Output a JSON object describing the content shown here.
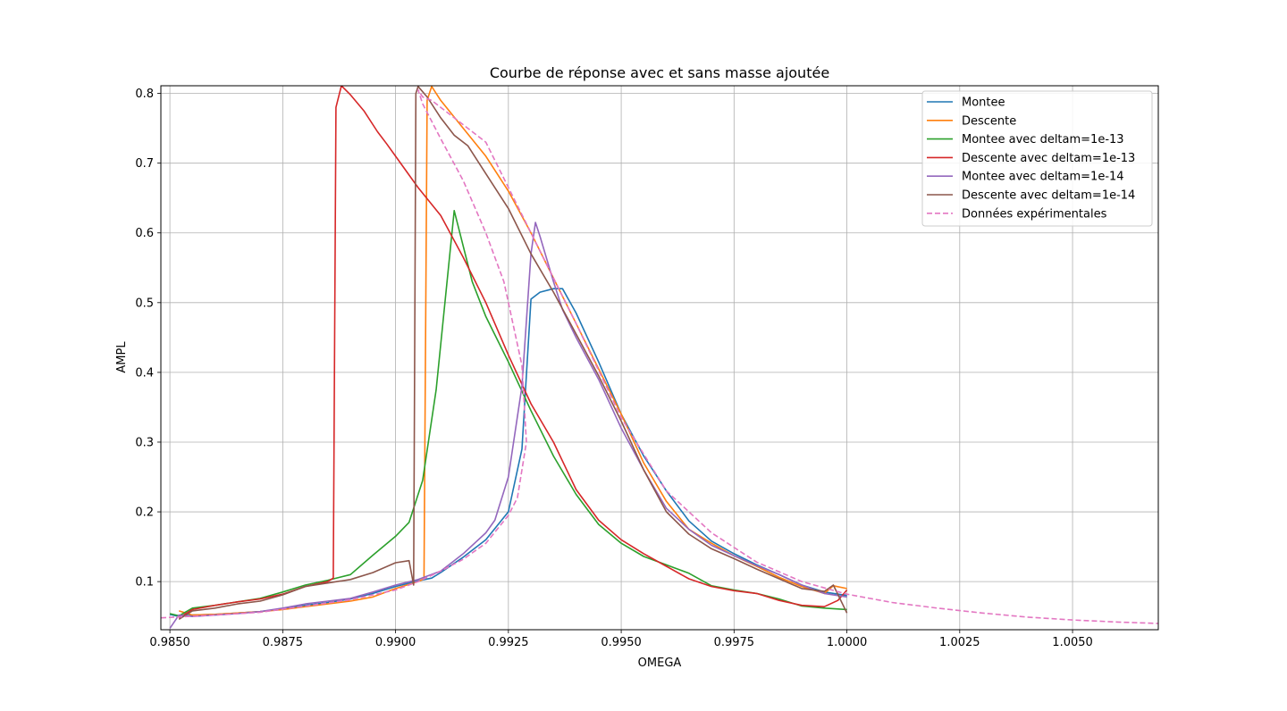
{
  "chart_data": {
    "type": "line",
    "title": "Courbe de réponse avec et sans masse ajoutée",
    "xlabel": "OMEGA",
    "ylabel": "AMPL",
    "xlim": [
      0.9848,
      1.0069
    ],
    "ylim": [
      0.031,
      0.811
    ],
    "grid": true,
    "legend_position": "top-right",
    "xticks": [
      {
        "value": 0.985,
        "label": "0.9850"
      },
      {
        "value": 0.9875,
        "label": "0.9875"
      },
      {
        "value": 0.99,
        "label": "0.9900"
      },
      {
        "value": 0.9925,
        "label": "0.9925"
      },
      {
        "value": 0.995,
        "label": "0.9950"
      },
      {
        "value": 0.9975,
        "label": "0.9975"
      },
      {
        "value": 1.0,
        "label": "1.0000"
      },
      {
        "value": 1.0025,
        "label": "1.0025"
      },
      {
        "value": 1.005,
        "label": "1.0050"
      }
    ],
    "yticks": [
      {
        "value": 0.1,
        "label": "0.1"
      },
      {
        "value": 0.2,
        "label": "0.2"
      },
      {
        "value": 0.3,
        "label": "0.3"
      },
      {
        "value": 0.4,
        "label": "0.4"
      },
      {
        "value": 0.5,
        "label": "0.5"
      },
      {
        "value": 0.6,
        "label": "0.6"
      },
      {
        "value": 0.7,
        "label": "0.7"
      },
      {
        "value": 0.8,
        "label": "0.8"
      }
    ],
    "series": [
      {
        "name": "Montee",
        "color": "#1f77b4",
        "dashed": false,
        "points": [
          [
            0.985,
            0.053
          ],
          [
            0.9852,
            0.05
          ],
          [
            0.9855,
            0.052
          ],
          [
            0.986,
            0.053
          ],
          [
            0.9865,
            0.055
          ],
          [
            0.987,
            0.057
          ],
          [
            0.9875,
            0.061
          ],
          [
            0.988,
            0.066
          ],
          [
            0.9885,
            0.07
          ],
          [
            0.989,
            0.075
          ],
          [
            0.9895,
            0.083
          ],
          [
            0.99,
            0.093
          ],
          [
            0.9905,
            0.101
          ],
          [
            0.9908,
            0.105
          ],
          [
            0.991,
            0.113
          ],
          [
            0.9915,
            0.135
          ],
          [
            0.992,
            0.16
          ],
          [
            0.9925,
            0.2
          ],
          [
            0.9928,
            0.29
          ],
          [
            0.993,
            0.505
          ],
          [
            0.9932,
            0.515
          ],
          [
            0.9935,
            0.52
          ],
          [
            0.9937,
            0.52
          ],
          [
            0.994,
            0.485
          ],
          [
            0.9945,
            0.415
          ],
          [
            0.995,
            0.34
          ],
          [
            0.9955,
            0.28
          ],
          [
            0.996,
            0.23
          ],
          [
            0.9965,
            0.187
          ],
          [
            0.997,
            0.158
          ],
          [
            0.9975,
            0.14
          ],
          [
            0.998,
            0.124
          ],
          [
            0.9985,
            0.11
          ],
          [
            0.999,
            0.095
          ],
          [
            0.9995,
            0.085
          ],
          [
            1.0,
            0.08
          ]
        ]
      },
      {
        "name": "Descente",
        "color": "#ff7f0e",
        "dashed": false,
        "points": [
          [
            0.9852,
            0.058
          ],
          [
            0.9855,
            0.052
          ],
          [
            0.986,
            0.053
          ],
          [
            0.9865,
            0.055
          ],
          [
            0.987,
            0.057
          ],
          [
            0.9875,
            0.06
          ],
          [
            0.988,
            0.064
          ],
          [
            0.9885,
            0.068
          ],
          [
            0.989,
            0.072
          ],
          [
            0.9895,
            0.078
          ],
          [
            0.99,
            0.09
          ],
          [
            0.9905,
            0.1
          ],
          [
            0.99063,
            0.104
          ],
          [
            0.9907,
            0.79
          ],
          [
            0.9908,
            0.81
          ],
          [
            0.991,
            0.79
          ],
          [
            0.9915,
            0.75
          ],
          [
            0.992,
            0.71
          ],
          [
            0.9925,
            0.66
          ],
          [
            0.993,
            0.6
          ],
          [
            0.9935,
            0.535
          ],
          [
            0.994,
            0.47
          ],
          [
            0.9945,
            0.405
          ],
          [
            0.995,
            0.34
          ],
          [
            0.9955,
            0.27
          ],
          [
            0.996,
            0.215
          ],
          [
            0.9965,
            0.175
          ],
          [
            0.997,
            0.155
          ],
          [
            0.9975,
            0.137
          ],
          [
            0.998,
            0.122
          ],
          [
            0.9985,
            0.106
          ],
          [
            0.999,
            0.093
          ],
          [
            0.9995,
            0.083
          ],
          [
            0.9997,
            0.094
          ],
          [
            1.0,
            0.09
          ]
        ]
      },
      {
        "name": "Montee avec deltam=1e-13",
        "color": "#2ca02c",
        "dashed": false,
        "points": [
          [
            0.985,
            0.054
          ],
          [
            0.9852,
            0.051
          ],
          [
            0.9855,
            0.062
          ],
          [
            0.986,
            0.066
          ],
          [
            0.9865,
            0.071
          ],
          [
            0.987,
            0.076
          ],
          [
            0.9875,
            0.085
          ],
          [
            0.988,
            0.095
          ],
          [
            0.9885,
            0.102
          ],
          [
            0.989,
            0.11
          ],
          [
            0.9895,
            0.138
          ],
          [
            0.99,
            0.165
          ],
          [
            0.9903,
            0.185
          ],
          [
            0.9906,
            0.245
          ],
          [
            0.9909,
            0.375
          ],
          [
            0.9913,
            0.632
          ],
          [
            0.9917,
            0.53
          ],
          [
            0.992,
            0.48
          ],
          [
            0.9925,
            0.415
          ],
          [
            0.993,
            0.345
          ],
          [
            0.9935,
            0.28
          ],
          [
            0.994,
            0.225
          ],
          [
            0.9945,
            0.182
          ],
          [
            0.995,
            0.155
          ],
          [
            0.9955,
            0.136
          ],
          [
            0.996,
            0.124
          ],
          [
            0.9965,
            0.112
          ],
          [
            0.997,
            0.094
          ],
          [
            0.9975,
            0.088
          ],
          [
            0.998,
            0.083
          ],
          [
            0.9985,
            0.075
          ],
          [
            0.999,
            0.065
          ],
          [
            0.9995,
            0.062
          ],
          [
            1.0,
            0.06
          ]
        ]
      },
      {
        "name": "Descente avec deltam=1e-13",
        "color": "#d62728",
        "dashed": false,
        "points": [
          [
            0.9852,
            0.048
          ],
          [
            0.9855,
            0.06
          ],
          [
            0.986,
            0.066
          ],
          [
            0.9865,
            0.071
          ],
          [
            0.987,
            0.075
          ],
          [
            0.9875,
            0.082
          ],
          [
            0.988,
            0.093
          ],
          [
            0.9885,
            0.1
          ],
          [
            0.98862,
            0.105
          ],
          [
            0.98868,
            0.78
          ],
          [
            0.9888,
            0.811
          ],
          [
            0.989,
            0.798
          ],
          [
            0.9893,
            0.775
          ],
          [
            0.9896,
            0.745
          ],
          [
            0.9898,
            0.728
          ],
          [
            0.99,
            0.71
          ],
          [
            0.9905,
            0.665
          ],
          [
            0.991,
            0.625
          ],
          [
            0.9915,
            0.565
          ],
          [
            0.992,
            0.5
          ],
          [
            0.9925,
            0.425
          ],
          [
            0.993,
            0.355
          ],
          [
            0.9935,
            0.3
          ],
          [
            0.994,
            0.232
          ],
          [
            0.9945,
            0.188
          ],
          [
            0.995,
            0.16
          ],
          [
            0.9955,
            0.14
          ],
          [
            0.996,
            0.122
          ],
          [
            0.9965,
            0.104
          ],
          [
            0.997,
            0.093
          ],
          [
            0.9975,
            0.087
          ],
          [
            0.998,
            0.083
          ],
          [
            0.9985,
            0.073
          ],
          [
            0.999,
            0.066
          ],
          [
            0.9995,
            0.064
          ],
          [
            0.9998,
            0.073
          ],
          [
            1.0,
            0.088
          ]
        ]
      },
      {
        "name": "Montee avec deltam=1e-14",
        "color": "#9467bd",
        "dashed": false,
        "points": [
          [
            0.985,
            0.033
          ],
          [
            0.9852,
            0.052
          ],
          [
            0.9855,
            0.05
          ],
          [
            0.986,
            0.052
          ],
          [
            0.9865,
            0.054
          ],
          [
            0.987,
            0.057
          ],
          [
            0.9875,
            0.062
          ],
          [
            0.988,
            0.068
          ],
          [
            0.9885,
            0.072
          ],
          [
            0.989,
            0.076
          ],
          [
            0.9895,
            0.085
          ],
          [
            0.99,
            0.095
          ],
          [
            0.9905,
            0.103
          ],
          [
            0.991,
            0.115
          ],
          [
            0.9915,
            0.14
          ],
          [
            0.992,
            0.17
          ],
          [
            0.9922,
            0.188
          ],
          [
            0.9925,
            0.25
          ],
          [
            0.9928,
            0.38
          ],
          [
            0.993,
            0.57
          ],
          [
            0.9931,
            0.615
          ],
          [
            0.9932,
            0.595
          ],
          [
            0.9935,
            0.53
          ],
          [
            0.9937,
            0.49
          ],
          [
            0.994,
            0.45
          ],
          [
            0.9945,
            0.39
          ],
          [
            0.995,
            0.32
          ],
          [
            0.9955,
            0.26
          ],
          [
            0.996,
            0.205
          ],
          [
            0.9965,
            0.175
          ],
          [
            0.997,
            0.152
          ],
          [
            0.9975,
            0.137
          ],
          [
            0.998,
            0.123
          ],
          [
            0.9985,
            0.11
          ],
          [
            0.999,
            0.095
          ],
          [
            0.9995,
            0.083
          ],
          [
            1.0,
            0.078
          ]
        ]
      },
      {
        "name": "Descente avec deltam=1e-14",
        "color": "#8c564b",
        "dashed": false,
        "points": [
          [
            0.9852,
            0.046
          ],
          [
            0.9855,
            0.058
          ],
          [
            0.986,
            0.062
          ],
          [
            0.9865,
            0.068
          ],
          [
            0.987,
            0.072
          ],
          [
            0.9875,
            0.081
          ],
          [
            0.988,
            0.093
          ],
          [
            0.9885,
            0.098
          ],
          [
            0.989,
            0.103
          ],
          [
            0.9895,
            0.113
          ],
          [
            0.99,
            0.127
          ],
          [
            0.9903,
            0.13
          ],
          [
            0.9904,
            0.095
          ],
          [
            0.99045,
            0.8
          ],
          [
            0.9905,
            0.81
          ],
          [
            0.9907,
            0.795
          ],
          [
            0.991,
            0.765
          ],
          [
            0.9913,
            0.74
          ],
          [
            0.9916,
            0.725
          ],
          [
            0.992,
            0.685
          ],
          [
            0.9925,
            0.635
          ],
          [
            0.993,
            0.57
          ],
          [
            0.9935,
            0.515
          ],
          [
            0.994,
            0.455
          ],
          [
            0.9945,
            0.395
          ],
          [
            0.995,
            0.33
          ],
          [
            0.9955,
            0.26
          ],
          [
            0.996,
            0.2
          ],
          [
            0.9965,
            0.168
          ],
          [
            0.997,
            0.147
          ],
          [
            0.9975,
            0.133
          ],
          [
            0.998,
            0.118
          ],
          [
            0.9985,
            0.104
          ],
          [
            0.999,
            0.09
          ],
          [
            0.9995,
            0.086
          ],
          [
            0.9997,
            0.095
          ],
          [
            1.0,
            0.055
          ]
        ]
      },
      {
        "name": "Données expérimentales",
        "color": "#e377c2",
        "dashed": true,
        "points": [
          [
            0.9848,
            0.048
          ],
          [
            0.986,
            0.052
          ],
          [
            0.987,
            0.056
          ],
          [
            0.988,
            0.065
          ],
          [
            0.989,
            0.074
          ],
          [
            0.99,
            0.088
          ],
          [
            0.9905,
            0.1
          ],
          [
            0.991,
            0.115
          ],
          [
            0.9915,
            0.132
          ],
          [
            0.992,
            0.155
          ],
          [
            0.9925,
            0.195
          ],
          [
            0.9927,
            0.22
          ],
          [
            0.9929,
            0.3
          ],
          [
            0.9928,
            0.41
          ],
          [
            0.9924,
            0.53
          ],
          [
            0.992,
            0.6
          ],
          [
            0.9915,
            0.675
          ],
          [
            0.991,
            0.735
          ],
          [
            0.9906,
            0.785
          ],
          [
            0.9905,
            0.805
          ],
          [
            0.9906,
            0.795
          ],
          [
            0.9908,
            0.79
          ],
          [
            0.991,
            0.78
          ],
          [
            0.992,
            0.73
          ],
          [
            0.993,
            0.6
          ],
          [
            0.994,
            0.47
          ],
          [
            0.995,
            0.335
          ],
          [
            0.996,
            0.23
          ],
          [
            0.997,
            0.17
          ],
          [
            0.998,
            0.128
          ],
          [
            0.999,
            0.1
          ],
          [
            1.0,
            0.082
          ],
          [
            1.001,
            0.07
          ],
          [
            1.002,
            0.062
          ],
          [
            1.003,
            0.055
          ],
          [
            1.004,
            0.049
          ],
          [
            1.005,
            0.045
          ],
          [
            1.006,
            0.042
          ],
          [
            1.0069,
            0.04
          ]
        ]
      }
    ]
  }
}
